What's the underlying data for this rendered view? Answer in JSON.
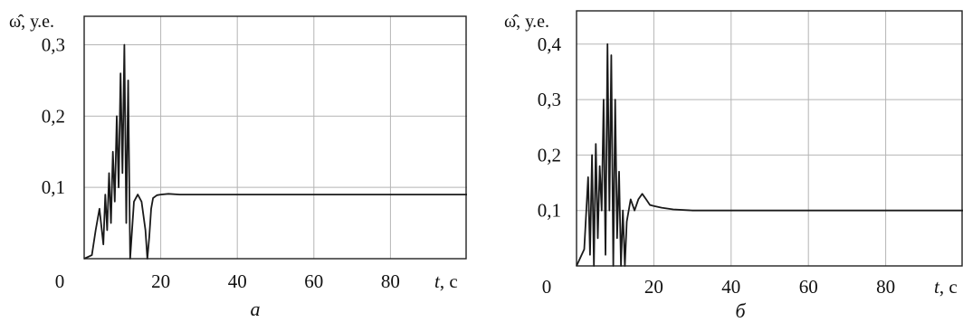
{
  "chart_data": [
    {
      "type": "line",
      "panel_label": "а",
      "ylabel": "ω̂, у.е.",
      "xlabel_var": "t",
      "xlabel_unit": ", с",
      "xlim": [
        0,
        100
      ],
      "ylim": [
        0,
        0.34
      ],
      "x_ticks": [
        0,
        20,
        40,
        60,
        80
      ],
      "x_tick_labels": [
        "0",
        "20",
        "40",
        "60",
        "80"
      ],
      "y_ticks": [
        0.1,
        0.2,
        0.3
      ],
      "y_tick_labels": [
        "0,1",
        "0,2",
        "0,3"
      ],
      "grid": true,
      "series": [
        {
          "x": [
            0,
            2,
            3,
            4,
            5,
            5.5,
            6,
            6.5,
            7,
            7.5,
            8,
            8.5,
            9,
            9.5,
            10,
            10.5,
            11,
            11.5,
            12,
            13,
            14,
            15,
            16,
            16.5,
            17,
            17.5,
            18,
            19,
            20,
            22,
            25,
            30,
            40,
            60,
            80,
            100
          ],
          "y": [
            0,
            0.005,
            0.04,
            0.07,
            0.02,
            0.09,
            0.04,
            0.12,
            0.05,
            0.15,
            0.08,
            0.2,
            0.1,
            0.26,
            0.12,
            0.3,
            0.05,
            0.25,
            0.0,
            0.08,
            0.09,
            0.08,
            0.04,
            0.0,
            0.03,
            0.07,
            0.085,
            0.089,
            0.09,
            0.091,
            0.09,
            0.09,
            0.09,
            0.09,
            0.09,
            0.09
          ]
        }
      ]
    },
    {
      "type": "line",
      "panel_label": "б",
      "ylabel": "ω̂, у.е.",
      "xlabel_var": "t",
      "xlabel_unit": ", с",
      "xlim": [
        0,
        100
      ],
      "ylim": [
        0,
        0.46
      ],
      "x_ticks": [
        0,
        20,
        40,
        60,
        80
      ],
      "x_tick_labels": [
        "0",
        "20",
        "40",
        "60",
        "80"
      ],
      "y_ticks": [
        0.1,
        0.2,
        0.3,
        0.4
      ],
      "y_tick_labels": [
        "0,1",
        "0,2",
        "0,3",
        "0,4"
      ],
      "grid": true,
      "series": [
        {
          "x": [
            0,
            2,
            3,
            3.5,
            4,
            4.5,
            5,
            5.5,
            6,
            6.5,
            7,
            7.5,
            8,
            8.5,
            9,
            9.5,
            10,
            10.5,
            11,
            11.5,
            12,
            12.5,
            13,
            14,
            15,
            16,
            17,
            18,
            19,
            20,
            22,
            25,
            30,
            40,
            60,
            80,
            100
          ],
          "y": [
            0,
            0.03,
            0.16,
            0.02,
            0.2,
            0.0,
            0.22,
            0.05,
            0.18,
            0.1,
            0.3,
            0.02,
            0.4,
            0.1,
            0.38,
            0.0,
            0.3,
            0.05,
            0.17,
            0.0,
            0.1,
            0.0,
            0.08,
            0.12,
            0.1,
            0.12,
            0.13,
            0.12,
            0.11,
            0.108,
            0.105,
            0.102,
            0.1,
            0.1,
            0.1,
            0.1,
            0.1
          ]
        }
      ]
    }
  ]
}
